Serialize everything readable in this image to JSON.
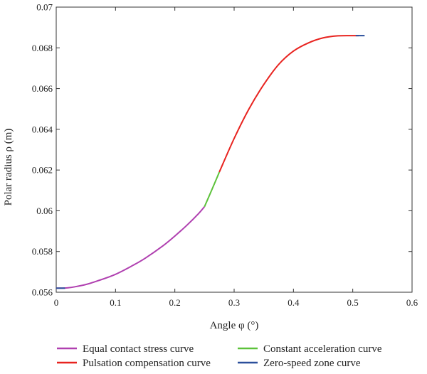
{
  "chart_data": {
    "type": "line",
    "title": "",
    "xlabel": "Angle φ (°)",
    "ylabel": "Polar radius ρ (m)",
    "xlim": [
      0,
      0.6
    ],
    "ylim": [
      0.056,
      0.07
    ],
    "x_ticks": [
      0,
      0.1,
      0.2,
      0.3,
      0.4,
      0.5,
      0.6
    ],
    "x_tick_labels": [
      "0",
      "0.1",
      "0.2",
      "0.3",
      "0.4",
      "0.5",
      "0.6"
    ],
    "y_ticks": [
      0.056,
      0.058,
      0.06,
      0.062,
      0.064,
      0.066,
      0.068,
      0.07
    ],
    "y_tick_labels": [
      "0.056",
      "0.058",
      "0.06",
      "0.062",
      "0.064",
      "0.066",
      "0.068",
      "0.07"
    ],
    "grid": false,
    "legend_position": "bottom",
    "series": [
      {
        "name": "Equal contact stress curve",
        "color": "#b040b0",
        "x": [
          0.0,
          0.01,
          0.02,
          0.03,
          0.05,
          0.07,
          0.1,
          0.13,
          0.15,
          0.18,
          0.2,
          0.22,
          0.24,
          0.25
        ],
        "y": [
          0.0562,
          0.0562,
          0.05622,
          0.05626,
          0.05638,
          0.05656,
          0.05688,
          0.05733,
          0.05767,
          0.05828,
          0.05876,
          0.05928,
          0.05986,
          0.0602
        ]
      },
      {
        "name": "Constant acceleration curve",
        "color": "#5cc23a",
        "x": [
          0.25,
          0.26,
          0.27,
          0.275
        ],
        "y": [
          0.0602,
          0.06087,
          0.06155,
          0.0619
        ]
      },
      {
        "name": "Pulsation compensation curve",
        "color": "#e8231f",
        "x": [
          0.275,
          0.3,
          0.325,
          0.35,
          0.375,
          0.4,
          0.425,
          0.45,
          0.475,
          0.5,
          0.51
        ],
        "y": [
          0.0619,
          0.06355,
          0.065,
          0.0662,
          0.06718,
          0.06784,
          0.06824,
          0.06849,
          0.06859,
          0.0686,
          0.0686
        ]
      },
      {
        "name": "Zero-speed zone curve",
        "color": "#2b4f9b",
        "segments": [
          {
            "x": [
              0.0,
              0.015
            ],
            "y": [
              0.0562,
              0.0562
            ]
          },
          {
            "x": [
              0.505,
              0.52
            ],
            "y": [
              0.0686,
              0.0686
            ]
          }
        ]
      }
    ]
  },
  "legend": [
    {
      "label": "Equal contact stress curve",
      "color": "#b040b0"
    },
    {
      "label": "Constant acceleration curve",
      "color": "#5cc23a"
    },
    {
      "label": "Pulsation compensation curve",
      "color": "#e8231f"
    },
    {
      "label": "Zero-speed zone curve",
      "color": "#2b4f9b"
    }
  ]
}
